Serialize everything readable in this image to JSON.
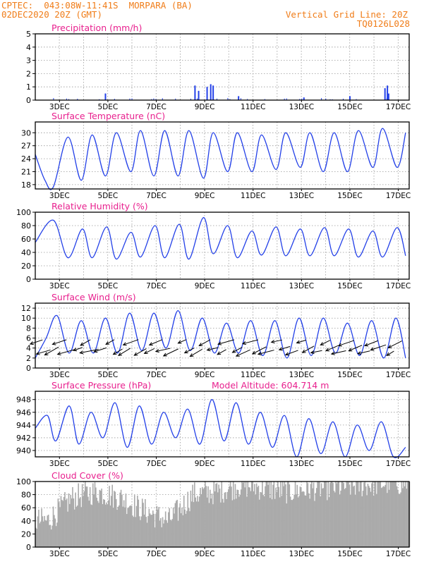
{
  "header": {
    "line1": "CPTEC:  043:08W-11:41S  MORPARA (BA)",
    "line2": "02DEC2020 20Z (GMT)",
    "right1": "Vertical Grid Line: 20Z",
    "right2": "TQ0126L028",
    "color": "#f07d19"
  },
  "colors": {
    "title": "#e8208e",
    "line": "#2340e8",
    "cloud": "#aaaaaa",
    "wind_arrow": "#000000"
  },
  "x_ticks": [
    "3DEC",
    "5DEC",
    "7DEC",
    "9DEC",
    "11DEC",
    "13DEC",
    "15DEC",
    "17DEC"
  ],
  "panels": [
    {
      "key": "precip",
      "title": "Precipitation (mm/h)",
      "ylim": [
        0,
        5
      ],
      "yticks": [
        "0",
        "1",
        "2",
        "3",
        "4",
        "5"
      ]
    },
    {
      "key": "temp",
      "title": "Surface Temperature (nC)",
      "ylim": [
        17,
        32.5
      ],
      "yticks": [
        "18",
        "21",
        "24",
        "27",
        "30"
      ]
    },
    {
      "key": "rh",
      "title": "Relative Humidity (%)",
      "ylim": [
        0,
        100
      ],
      "yticks": [
        "0",
        "20",
        "40",
        "60",
        "80",
        "100"
      ]
    },
    {
      "key": "wind",
      "title": "Surface Wind (m/s)",
      "ylim": [
        0,
        13
      ],
      "yticks": [
        "0",
        "2",
        "4",
        "6",
        "8",
        "10",
        "12"
      ]
    },
    {
      "key": "press",
      "title": "Surface Pressure (hPa)",
      "extra": "Model Altitude: 604.714 m",
      "ylim": [
        939,
        949.3
      ],
      "yticks": [
        "940",
        "942",
        "944",
        "946",
        "948"
      ]
    },
    {
      "key": "cloud",
      "title": "Cloud Cover (%)",
      "ylim": [
        0,
        100
      ],
      "yticks": [
        "0",
        "20",
        "40",
        "60",
        "80",
        "100"
      ]
    }
  ],
  "chart_data": [
    {
      "type": "bar",
      "title": "Precipitation (mm/h)",
      "x": [
        "8.6DEC",
        "8.75DEC",
        "9.1DEC",
        "9.25DEC",
        "9.35DEC",
        "10.4DEC",
        "13.1DEC",
        "15.0DEC",
        "16.45DEC",
        "16.55DEC",
        "16.6DEC",
        "4.9DEC"
      ],
      "values": [
        1.1,
        0.7,
        1.0,
        1.2,
        1.1,
        0.3,
        0.2,
        0.3,
        0.9,
        1.1,
        0.5,
        0.5
      ],
      "ylim": [
        0,
        5
      ]
    },
    {
      "type": "line",
      "title": "Surface Temperature (nC)",
      "x": [
        "2DEC",
        "2.4DEC",
        "2.75DEC",
        "3.35DEC",
        "3.9DEC",
        "4.35DEC",
        "4.9DEC",
        "5.35DEC",
        "5.95DEC",
        "6.35DEC",
        "6.9DEC",
        "7.35DEC",
        "7.9DEC",
        "8.35DEC",
        "8.95DEC",
        "9.35DEC",
        "9.95DEC",
        "10.35DEC",
        "10.95DEC",
        "11.35DEC",
        "11.95DEC",
        "12.35DEC",
        "12.95DEC",
        "13.35DEC",
        "13.9DEC",
        "14.35DEC",
        "14.9DEC",
        "15.35DEC",
        "15.95DEC",
        "16.35DEC",
        "16.95DEC",
        "17.3DEC"
      ],
      "values": [
        25,
        19,
        17.5,
        29,
        19,
        29.5,
        20,
        30,
        21,
        30.5,
        20,
        30.5,
        20,
        30.5,
        19.5,
        30,
        21,
        30,
        21,
        29.5,
        21.5,
        30,
        22,
        30,
        21,
        30,
        21,
        30.5,
        22,
        31,
        22,
        30
      ],
      "ylim": [
        17,
        32.5
      ]
    },
    {
      "type": "line",
      "title": "Relative Humidity (%)",
      "x": [
        "2DEC",
        "2.75DEC",
        "3.35DEC",
        "3.95DEC",
        "4.35DEC",
        "4.95DEC",
        "5.35DEC",
        "5.95DEC",
        "6.35DEC",
        "6.95DEC",
        "7.35DEC",
        "7.95DEC",
        "8.35DEC",
        "8.95DEC",
        "9.35DEC",
        "9.95DEC",
        "10.35DEC",
        "10.95DEC",
        "11.35DEC",
        "11.95DEC",
        "12.35DEC",
        "12.95DEC",
        "13.35DEC",
        "13.95DEC",
        "14.35DEC",
        "14.95DEC",
        "15.35DEC",
        "15.95DEC",
        "16.35DEC",
        "16.95DEC",
        "17.3DEC"
      ],
      "values": [
        55,
        88,
        32,
        75,
        32,
        78,
        30,
        70,
        33,
        80,
        32,
        82,
        30,
        92,
        38,
        80,
        32,
        72,
        36,
        78,
        35,
        75,
        35,
        77,
        35,
        75,
        33,
        72,
        33,
        77,
        35
      ],
      "ylim": [
        0,
        100
      ]
    },
    {
      "type": "line",
      "title": "Surface Wind (m/s)",
      "x": [
        "2DEC",
        "2.45DEC",
        "2.9DEC",
        "3.4DEC",
        "3.9DEC",
        "4.4DEC",
        "4.9DEC",
        "5.4DEC",
        "5.9DEC",
        "6.4DEC",
        "6.9DEC",
        "7.4DEC",
        "7.9DEC",
        "8.4DEC",
        "8.9DEC",
        "9.4DEC",
        "9.9DEC",
        "10.4DEC",
        "10.9DEC",
        "11.4DEC",
        "11.9DEC",
        "12.4DEC",
        "12.9DEC",
        "13.4DEC",
        "13.9DEC",
        "14.4DEC",
        "14.9DEC",
        "15.4DEC",
        "15.9DEC",
        "16.4DEC",
        "16.9DEC",
        "17.3DEC"
      ],
      "values": [
        2,
        6,
        10.5,
        3,
        9.5,
        3,
        10,
        3,
        11,
        3.5,
        11,
        4,
        11.5,
        3.5,
        10,
        3,
        9,
        3,
        9.5,
        2.5,
        9.5,
        2,
        10,
        2.5,
        10,
        3,
        9,
        2.5,
        9.5,
        2,
        10,
        2
      ],
      "ylim": [
        0,
        13
      ]
    },
    {
      "type": "line",
      "title": "Surface Pressure (hPa)",
      "x": [
        "2DEC",
        "2.5DEC",
        "2.85DEC",
        "3.4DEC",
        "3.8DEC",
        "4.3DEC",
        "4.8DEC",
        "5.3DEC",
        "5.8DEC",
        "6.3DEC",
        "6.8DEC",
        "7.3DEC",
        "7.8DEC",
        "8.3DEC",
        "8.8DEC",
        "9.3DEC",
        "9.8DEC",
        "10.3DEC",
        "10.8DEC",
        "11.3DEC",
        "11.8DEC",
        "12.3DEC",
        "12.8DEC",
        "13.3DEC",
        "13.8DEC",
        "14.3DEC",
        "14.8DEC",
        "15.3DEC",
        "15.8DEC",
        "16.3DEC",
        "16.8DEC",
        "17.3DEC"
      ],
      "values": [
        943.5,
        945.5,
        941.5,
        947,
        941,
        946,
        942,
        947.5,
        940.5,
        947,
        941,
        946,
        942,
        946.5,
        941,
        948,
        941.5,
        947.5,
        941,
        946,
        940.5,
        945.5,
        939,
        945,
        939.5,
        944.5,
        939,
        944,
        940,
        944.5,
        939,
        940.5
      ],
      "ylim": [
        939,
        949.3
      ]
    },
    {
      "type": "bar",
      "title": "Cloud Cover (%)",
      "x": [
        "2.5DEC",
        "3.5DEC",
        "4.5DEC",
        "5.5DEC",
        "6.5DEC",
        "7.5DEC",
        "8.5DEC",
        "9.5DEC",
        "10.5DEC",
        "11.5DEC",
        "12.5DEC",
        "13.5DEC",
        "14.5DEC",
        "15.5DEC",
        "16.5DEC"
      ],
      "values": [
        40,
        75,
        85,
        75,
        55,
        40,
        80,
        85,
        95,
        90,
        85,
        90,
        92,
        95,
        98
      ],
      "ylim": [
        0,
        100
      ]
    }
  ]
}
